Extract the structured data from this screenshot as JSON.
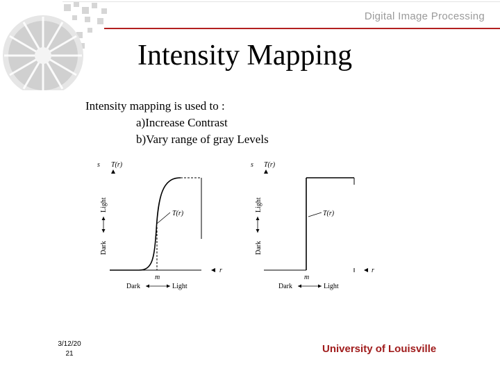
{
  "header": {
    "course_name": "Digital Image Processing"
  },
  "slide": {
    "title": "Intensity Mapping",
    "intro": "Intensity mapping is used to :",
    "bullets": [
      "a)Increase Contrast",
      "b)Vary range of gray Levels"
    ]
  },
  "figure": {
    "left_graph": {
      "y_axis_symbol": "s",
      "function_label": "T(r)",
      "curve_label": "T(r)",
      "x_axis_symbol": "r",
      "midpoint_label": "m",
      "x_dark": "Dark",
      "x_light": "Light",
      "y_dark": "Dark",
      "y_light": "Light"
    },
    "right_graph": {
      "y_axis_symbol": "s",
      "function_label": "T(r)",
      "curve_label": "T(r)",
      "x_axis_symbol": "r",
      "midpoint_label": "m",
      "x_dark": "Dark",
      "x_light": "Light",
      "y_dark": "Dark",
      "y_light": "Light"
    }
  },
  "footer": {
    "date_line1": "3/12/20",
    "date_line2": "21",
    "university": "University of Louisville"
  }
}
